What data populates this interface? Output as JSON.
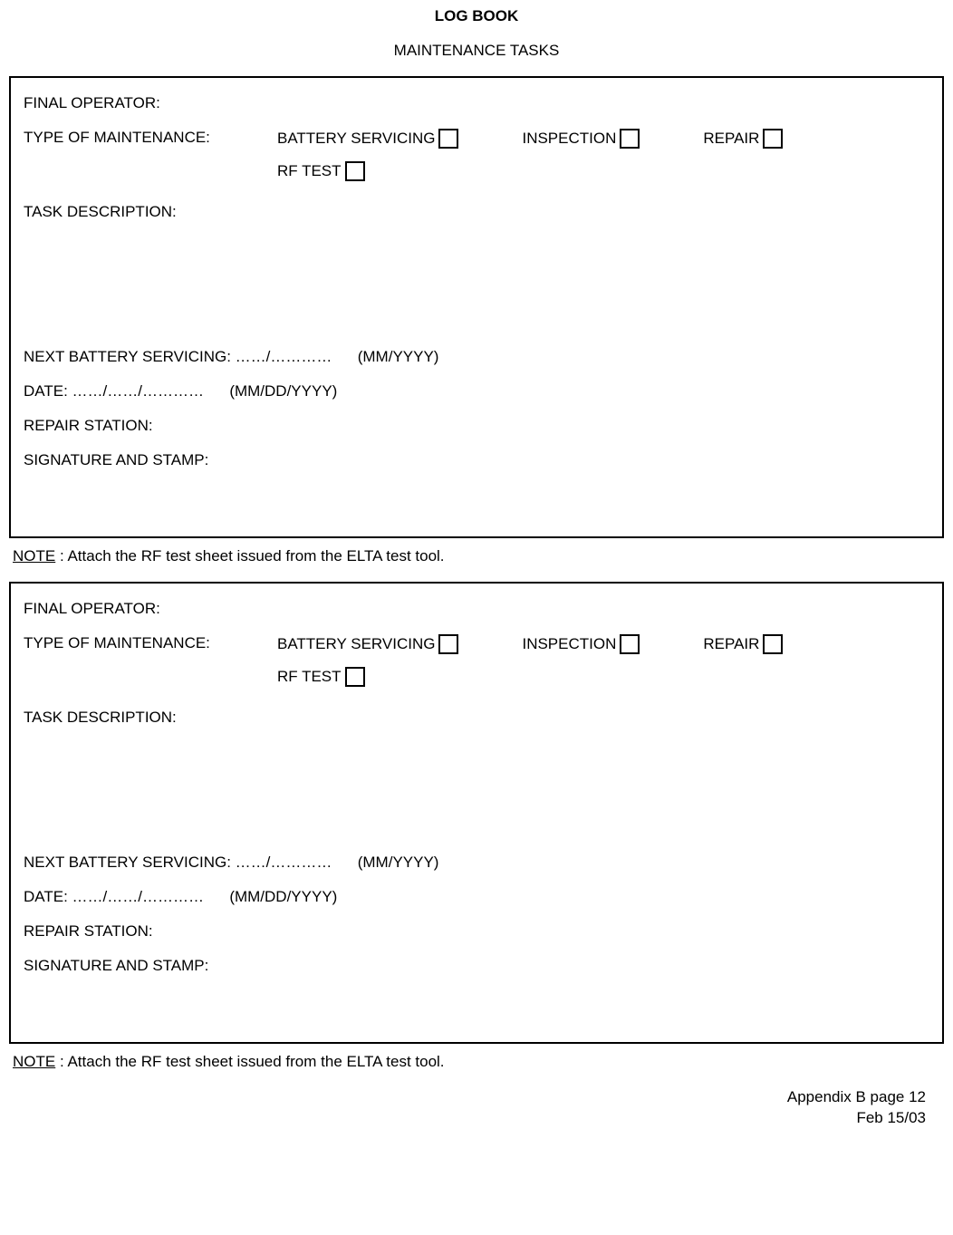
{
  "header": {
    "title": "LOG BOOK",
    "subtitle": "MAINTENANCE TASKS"
  },
  "form": {
    "final_operator_label": "FINAL OPERATOR:",
    "type_of_maintenance_label": "TYPE OF MAINTENANCE:",
    "opt_battery": "BATTERY SERVICING",
    "opt_inspection": "INSPECTION",
    "opt_repair": "REPAIR",
    "opt_rf_test": "RF TEST",
    "task_description_label": "TASK DESCRIPTION:",
    "next_battery_label": "NEXT BATTERY SERVICING: ……/…………",
    "next_battery_fmt": "(MM/YYYY)",
    "date_label": "DATE: ……/……/…………",
    "date_fmt": "(MM/DD/YYYY)",
    "repair_station_label": "REPAIR STATION:",
    "signature_label": "SIGNATURE AND STAMP:"
  },
  "note": {
    "label": "NOTE",
    "text": " : Attach the RF test sheet issued from the ELTA test tool."
  },
  "footer": {
    "page_ref": "Appendix B page 12",
    "date": "Feb 15/03"
  }
}
